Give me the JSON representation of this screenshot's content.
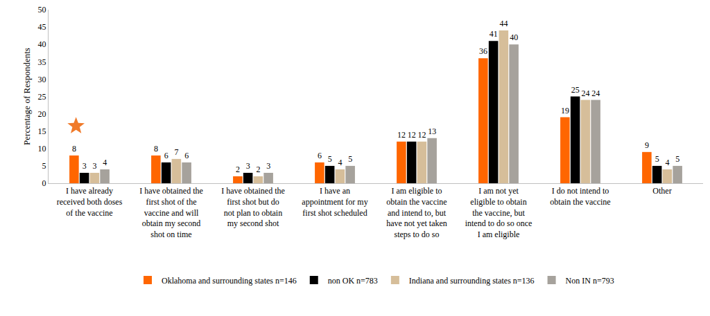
{
  "chart_data": {
    "type": "bar",
    "ylabel": "Percentage of Respondents",
    "categories": [
      "I have already received both doses of the vaccine",
      "I have obtained the first shot of the vaccine and will obtain my second shot on time",
      "I have obtained the first shot but do not plan to obtain my second shot",
      "I have an appointment for my first shot scheduled",
      "I am eligible to obtain the vaccine and intend to, but have not yet taken steps to do so",
      "I am not yet eligible to obtain the vaccine, but intend to do so once I am eligible",
      "I do not intend to obtain the vaccine",
      "Other"
    ],
    "series": [
      {
        "name": "Oklahoma and surrounding states n=146",
        "color": "#FF6600",
        "values": [
          8,
          8,
          2,
          6,
          12,
          36,
          19,
          9
        ]
      },
      {
        "name": "non OK n=783",
        "color": "#000000",
        "values": [
          3,
          6,
          3,
          5,
          12,
          41,
          25,
          5
        ]
      },
      {
        "name": "Indiana and surrounding states n=136",
        "color": "#D6BE9A",
        "values": [
          3,
          7,
          2,
          4,
          12,
          44,
          24,
          4
        ]
      },
      {
        "name": "Non IN n=793",
        "color": "#A6A29C",
        "values": [
          4,
          6,
          3,
          5,
          13,
          40,
          24,
          5
        ]
      }
    ],
    "ylim": [
      0,
      50
    ],
    "yticks": [
      0,
      5,
      10,
      15,
      20,
      25,
      30,
      35,
      40,
      45,
      50
    ],
    "grid": false,
    "legend": "bottom",
    "data_labels": true
  }
}
